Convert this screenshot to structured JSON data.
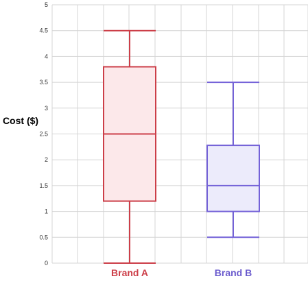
{
  "chart_data": {
    "type": "boxplot",
    "ylabel": "Cost ($)",
    "ylim": [
      0,
      5
    ],
    "yticks": [
      "0",
      "0.5",
      "1",
      "1.5",
      "2",
      "2.5",
      "3",
      "3.5",
      "4",
      "4.5",
      "5"
    ],
    "grid": true,
    "categories": [
      "Brand A",
      "Brand B"
    ],
    "series": [
      {
        "min": 0,
        "q1": 1.2,
        "median": 2.5,
        "q3": 3.8,
        "max": 4.5,
        "stroke": "#cc3e48",
        "fill": "#fce8ea",
        "label_color": "#cc3e48"
      },
      {
        "min": 0.5,
        "q1": 1.0,
        "median": 1.5,
        "q3": 2.28,
        "max": 3.5,
        "stroke": "#7462d8",
        "fill": "#ecebfb",
        "label_color": "#6a5acd"
      }
    ]
  }
}
